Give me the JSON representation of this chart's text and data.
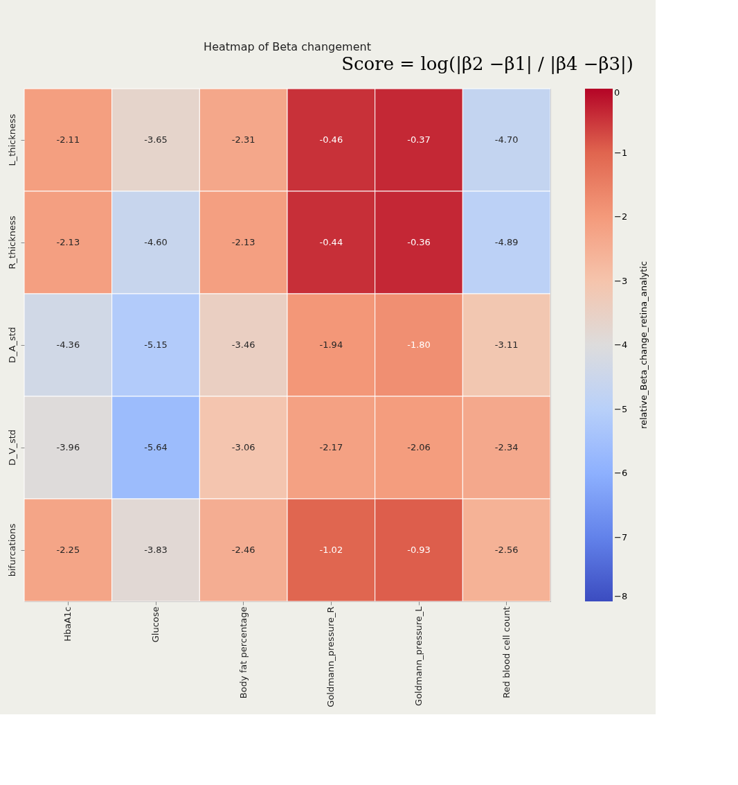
{
  "chart_data": {
    "type": "heatmap",
    "title": "Heatmap of Beta changement",
    "annotations": [
      "Score = log(|β2 −β1| / |β4 −β3|)"
    ],
    "categories": [
      "HbaA1c",
      "Glucose",
      "Body fat percentage",
      "Goldmann_pressure_R",
      "Goldmann_pressure_L",
      "Red blood cell count"
    ],
    "y_categories": [
      "L_thickness",
      "R_thickness",
      "D_A_std",
      "D_V_std",
      "bifurcations"
    ],
    "cells": [
      [
        -2.11,
        -3.65,
        -2.31,
        -0.46,
        -0.37,
        -4.7
      ],
      [
        -2.13,
        -4.6,
        -2.13,
        -0.44,
        -0.36,
        -4.89
      ],
      [
        -4.36,
        -5.15,
        -3.46,
        -1.94,
        -1.8,
        -3.11
      ],
      [
        -3.96,
        -5.64,
        -3.06,
        -2.17,
        -2.06,
        -2.34
      ],
      [
        -2.25,
        -3.83,
        -2.46,
        -1.02,
        -0.93,
        -2.56
      ]
    ],
    "cell_labels": [
      [
        "-2.11",
        "-3.65",
        "-2.31",
        "-0.46",
        "-0.37",
        "-4.70"
      ],
      [
        "-2.13",
        "-4.60",
        "-2.13",
        "-0.44",
        "-0.36",
        "-4.89"
      ],
      [
        "-4.36",
        "-5.15",
        "-3.46",
        "-1.94",
        "-1.80",
        "-3.11"
      ],
      [
        "-3.96",
        "-5.64",
        "-3.06",
        "-2.17",
        "-2.06",
        "-2.34"
      ],
      [
        "-2.25",
        "-3.83",
        "-2.46",
        "-1.02",
        "-0.93",
        "-2.56"
      ]
    ],
    "clabel": "relative_Beta_change_retina_analytic",
    "clim": [
      -8,
      0
    ],
    "cticks": [
      -8,
      -7,
      -6,
      -5,
      -4,
      -3,
      -2,
      -1,
      0
    ]
  }
}
